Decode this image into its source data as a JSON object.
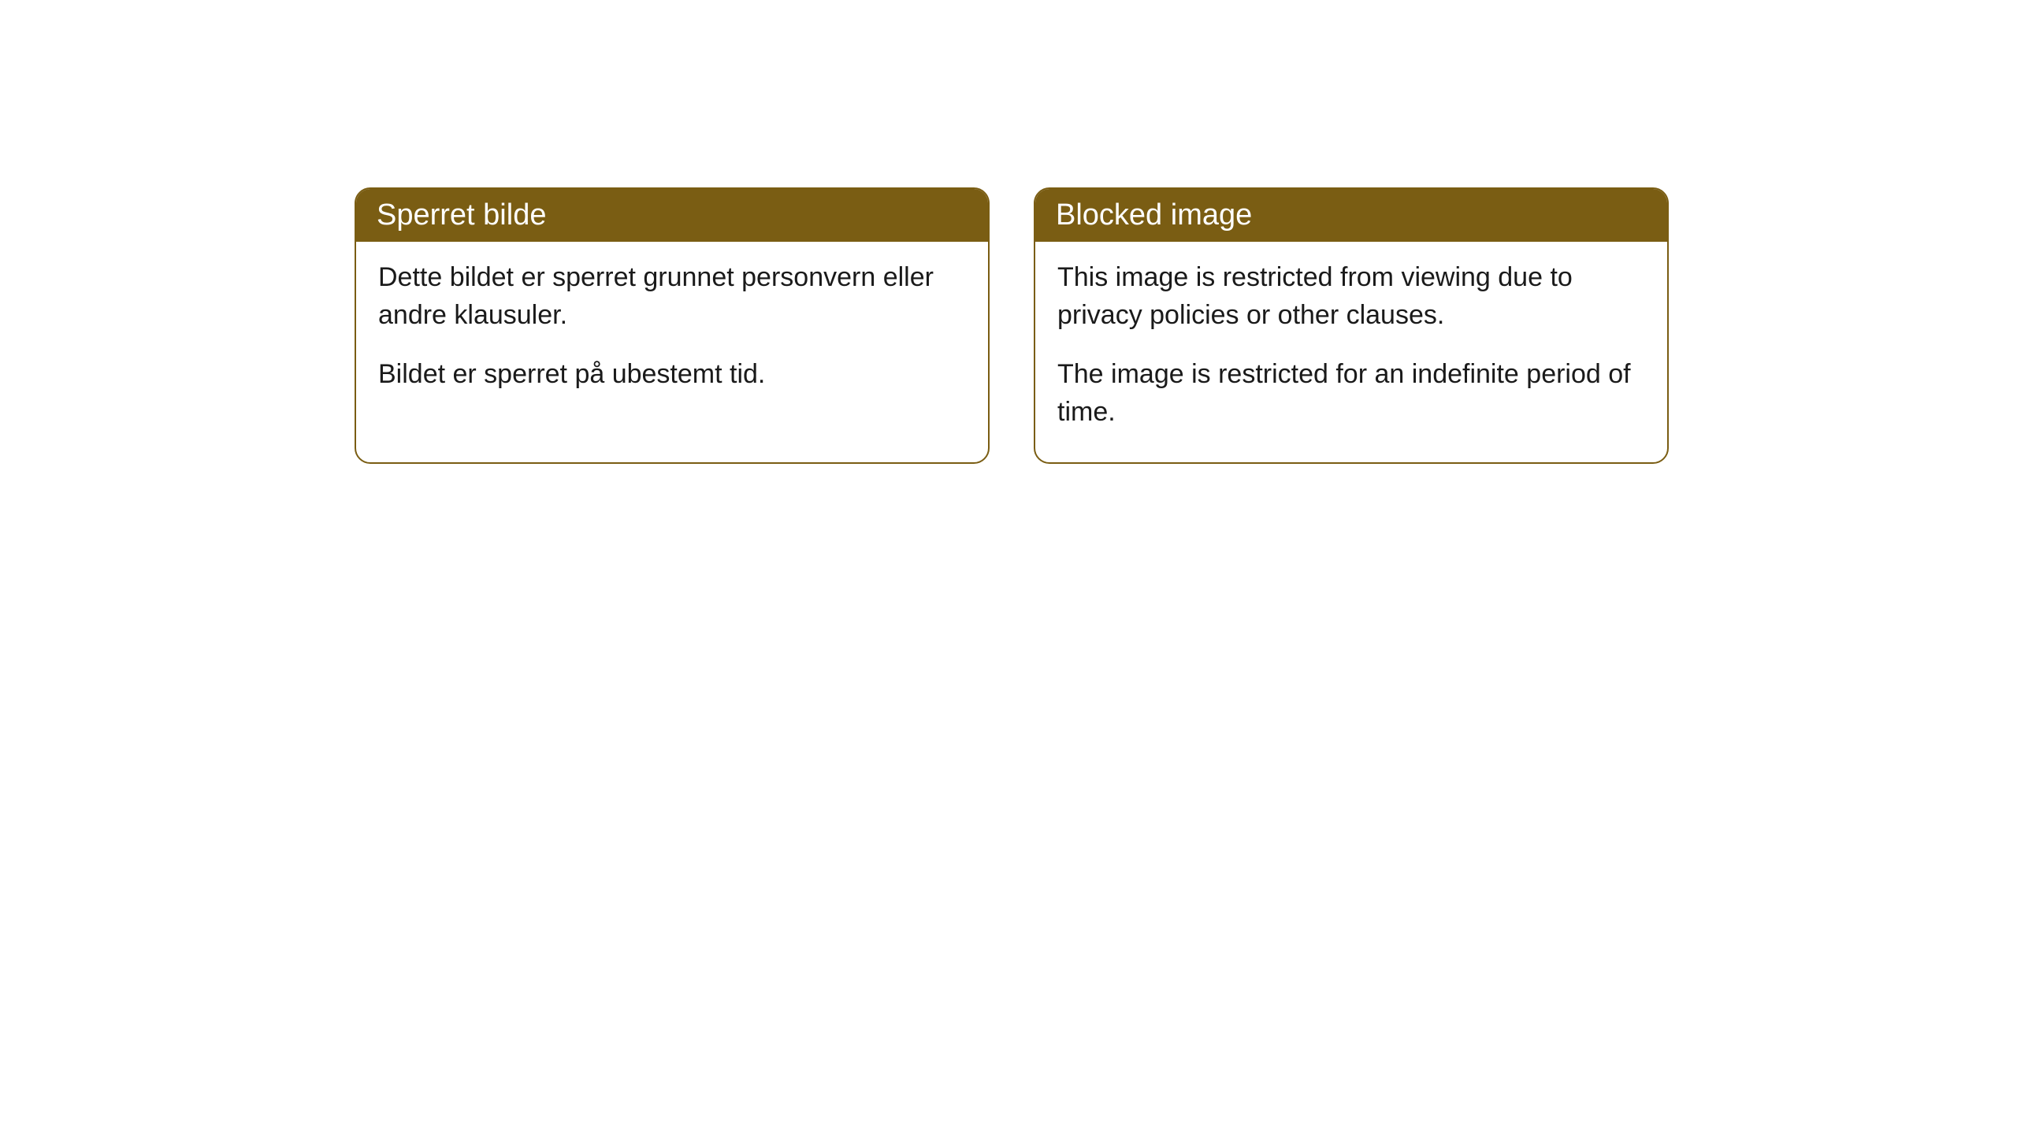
{
  "cards": [
    {
      "title": "Sperret bilde",
      "paragraph1": "Dette bildet er sperret grunnet personvern eller andre klausuler.",
      "paragraph2": "Bildet er sperret på ubestemt tid."
    },
    {
      "title": "Blocked image",
      "paragraph1": "This image is restricted from viewing due to privacy policies or other clauses.",
      "paragraph2": "The image is restricted for an indefinite period of time."
    }
  ],
  "style": {
    "header_bg_color": "#7a5d13",
    "header_text_color": "#ffffff",
    "border_color": "#7a5d13",
    "body_bg_color": "#ffffff",
    "body_text_color": "#1a1a1a",
    "border_radius": 20,
    "header_fontsize": 38,
    "body_fontsize": 34
  }
}
